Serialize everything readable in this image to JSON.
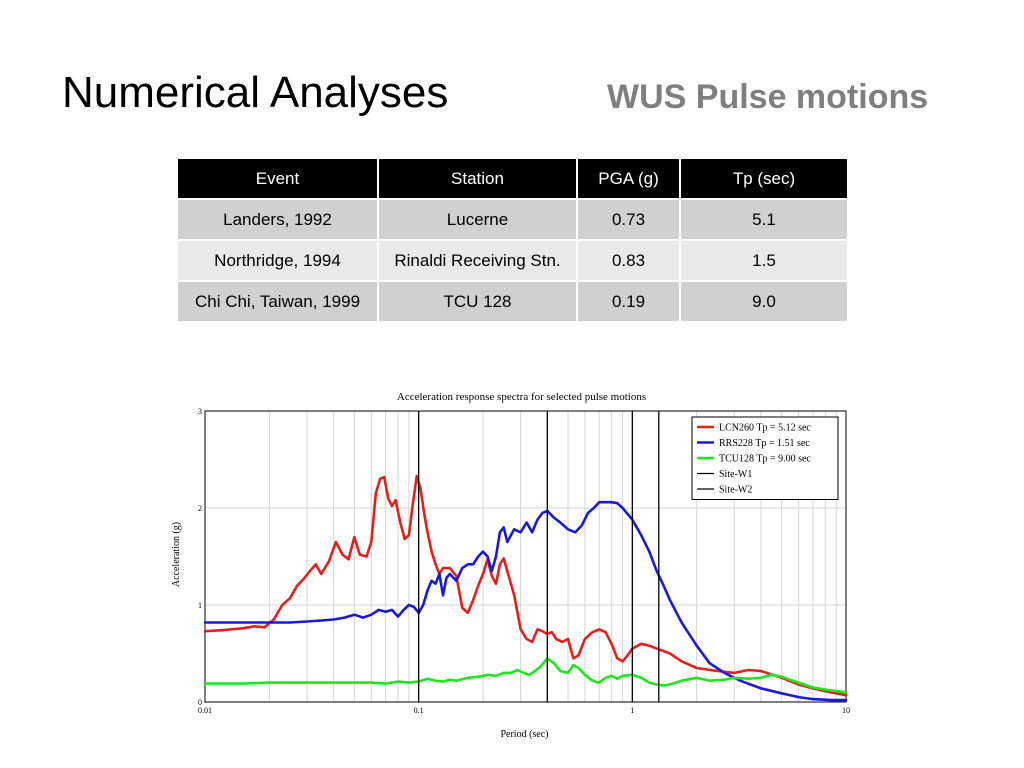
{
  "slide": {
    "title": "Numerical Analyses",
    "subtitle": "WUS Pulse motions"
  },
  "table": {
    "headers": [
      "Event",
      "Station",
      "PGA (g)",
      "Tp (sec)"
    ],
    "rows": [
      [
        "Landers, 1992",
        "Lucerne",
        "0.73",
        "5.1"
      ],
      [
        "Northridge, 1994",
        "Rinaldi Receiving Stn.",
        "0.83",
        "1.5"
      ],
      [
        "Chi Chi, Taiwan, 1999",
        "TCU 128",
        "0.19",
        "9.0"
      ]
    ]
  },
  "chart_data": {
    "type": "line",
    "title": "Acceleration response spectra for selected pulse motions",
    "xlabel": "Period (sec)",
    "ylabel": "Acceleration (g)",
    "xscale": "log",
    "xlim": [
      0.01,
      10
    ],
    "ylim": [
      0,
      3
    ],
    "xticks": [
      "0.01",
      "0.1",
      "1",
      "10"
    ],
    "yticks": [
      "0",
      "1",
      "2",
      "3"
    ],
    "grid": true,
    "legend_position": "top-right",
    "series": [
      {
        "name": "LCN260 Tp = 5.12 sec",
        "color": "#e3201b",
        "points": [
          [
            0.01,
            0.73
          ],
          [
            0.012,
            0.74
          ],
          [
            0.015,
            0.76
          ],
          [
            0.017,
            0.78
          ],
          [
            0.019,
            0.77
          ],
          [
            0.021,
            0.85
          ],
          [
            0.023,
            1.0
          ],
          [
            0.025,
            1.07
          ],
          [
            0.027,
            1.2
          ],
          [
            0.029,
            1.27
          ],
          [
            0.031,
            1.35
          ],
          [
            0.033,
            1.42
          ],
          [
            0.035,
            1.32
          ],
          [
            0.038,
            1.45
          ],
          [
            0.041,
            1.65
          ],
          [
            0.044,
            1.52
          ],
          [
            0.047,
            1.47
          ],
          [
            0.05,
            1.7
          ],
          [
            0.053,
            1.52
          ],
          [
            0.057,
            1.5
          ],
          [
            0.06,
            1.65
          ],
          [
            0.063,
            2.15
          ],
          [
            0.066,
            2.3
          ],
          [
            0.069,
            2.32
          ],
          [
            0.072,
            2.1
          ],
          [
            0.075,
            2.02
          ],
          [
            0.078,
            2.08
          ],
          [
            0.082,
            1.85
          ],
          [
            0.086,
            1.68
          ],
          [
            0.09,
            1.72
          ],
          [
            0.094,
            2.05
          ],
          [
            0.098,
            2.33
          ],
          [
            0.102,
            2.2
          ],
          [
            0.106,
            1.95
          ],
          [
            0.11,
            1.75
          ],
          [
            0.115,
            1.55
          ],
          [
            0.12,
            1.42
          ],
          [
            0.125,
            1.32
          ],
          [
            0.13,
            1.38
          ],
          [
            0.14,
            1.38
          ],
          [
            0.15,
            1.3
          ],
          [
            0.16,
            0.97
          ],
          [
            0.17,
            0.92
          ],
          [
            0.18,
            1.05
          ],
          [
            0.19,
            1.2
          ],
          [
            0.2,
            1.32
          ],
          [
            0.21,
            1.47
          ],
          [
            0.22,
            1.3
          ],
          [
            0.23,
            1.22
          ],
          [
            0.24,
            1.42
          ],
          [
            0.25,
            1.48
          ],
          [
            0.26,
            1.35
          ],
          [
            0.28,
            1.1
          ],
          [
            0.3,
            0.75
          ],
          [
            0.32,
            0.65
          ],
          [
            0.34,
            0.62
          ],
          [
            0.36,
            0.75
          ],
          [
            0.38,
            0.73
          ],
          [
            0.4,
            0.7
          ],
          [
            0.42,
            0.72
          ],
          [
            0.44,
            0.65
          ],
          [
            0.47,
            0.62
          ],
          [
            0.5,
            0.65
          ],
          [
            0.53,
            0.45
          ],
          [
            0.56,
            0.48
          ],
          [
            0.6,
            0.65
          ],
          [
            0.65,
            0.72
          ],
          [
            0.7,
            0.75
          ],
          [
            0.75,
            0.72
          ],
          [
            0.8,
            0.6
          ],
          [
            0.85,
            0.45
          ],
          [
            0.9,
            0.42
          ],
          [
            0.95,
            0.48
          ],
          [
            1.0,
            0.55
          ],
          [
            1.1,
            0.6
          ],
          [
            1.2,
            0.58
          ],
          [
            1.3,
            0.55
          ],
          [
            1.5,
            0.5
          ],
          [
            1.7,
            0.42
          ],
          [
            2.0,
            0.35
          ],
          [
            2.5,
            0.32
          ],
          [
            3.0,
            0.3
          ],
          [
            3.5,
            0.33
          ],
          [
            4.0,
            0.32
          ],
          [
            5.0,
            0.25
          ],
          [
            6.0,
            0.18
          ],
          [
            7.0,
            0.14
          ],
          [
            8.5,
            0.1
          ],
          [
            10,
            0.07
          ]
        ]
      },
      {
        "name": "RRS228 Tp = 1.51 sec",
        "color": "#1a1ad6",
        "points": [
          [
            0.01,
            0.82
          ],
          [
            0.015,
            0.82
          ],
          [
            0.02,
            0.82
          ],
          [
            0.025,
            0.82
          ],
          [
            0.03,
            0.83
          ],
          [
            0.035,
            0.84
          ],
          [
            0.04,
            0.85
          ],
          [
            0.045,
            0.87
          ],
          [
            0.05,
            0.9
          ],
          [
            0.055,
            0.87
          ],
          [
            0.06,
            0.9
          ],
          [
            0.065,
            0.95
          ],
          [
            0.07,
            0.93
          ],
          [
            0.075,
            0.95
          ],
          [
            0.08,
            0.88
          ],
          [
            0.085,
            0.95
          ],
          [
            0.09,
            1.0
          ],
          [
            0.095,
            0.98
          ],
          [
            0.1,
            0.92
          ],
          [
            0.105,
            1.0
          ],
          [
            0.11,
            1.15
          ],
          [
            0.115,
            1.25
          ],
          [
            0.12,
            1.22
          ],
          [
            0.125,
            1.32
          ],
          [
            0.13,
            1.1
          ],
          [
            0.135,
            1.28
          ],
          [
            0.14,
            1.32
          ],
          [
            0.15,
            1.25
          ],
          [
            0.16,
            1.38
          ],
          [
            0.17,
            1.42
          ],
          [
            0.18,
            1.42
          ],
          [
            0.19,
            1.5
          ],
          [
            0.2,
            1.55
          ],
          [
            0.21,
            1.5
          ],
          [
            0.22,
            1.35
          ],
          [
            0.23,
            1.5
          ],
          [
            0.24,
            1.75
          ],
          [
            0.25,
            1.8
          ],
          [
            0.26,
            1.65
          ],
          [
            0.28,
            1.78
          ],
          [
            0.3,
            1.75
          ],
          [
            0.32,
            1.85
          ],
          [
            0.34,
            1.75
          ],
          [
            0.36,
            1.88
          ],
          [
            0.38,
            1.95
          ],
          [
            0.4,
            1.97
          ],
          [
            0.43,
            1.9
          ],
          [
            0.46,
            1.85
          ],
          [
            0.5,
            1.78
          ],
          [
            0.54,
            1.75
          ],
          [
            0.58,
            1.82
          ],
          [
            0.62,
            1.95
          ],
          [
            0.66,
            2.0
          ],
          [
            0.7,
            2.06
          ],
          [
            0.75,
            2.06
          ],
          [
            0.8,
            2.06
          ],
          [
            0.85,
            2.05
          ],
          [
            0.9,
            2.0
          ],
          [
            1.0,
            1.88
          ],
          [
            1.1,
            1.72
          ],
          [
            1.2,
            1.55
          ],
          [
            1.3,
            1.35
          ],
          [
            1.4,
            1.2
          ],
          [
            1.5,
            1.05
          ],
          [
            1.7,
            0.82
          ],
          [
            2.0,
            0.58
          ],
          [
            2.3,
            0.4
          ],
          [
            2.7,
            0.3
          ],
          [
            3.2,
            0.22
          ],
          [
            4.0,
            0.14
          ],
          [
            5.0,
            0.09
          ],
          [
            6.0,
            0.05
          ],
          [
            7.0,
            0.03
          ],
          [
            8.5,
            0.02
          ],
          [
            10,
            0.02
          ]
        ]
      },
      {
        "name": "TCU128 Tp = 9.00 sec",
        "color": "#1ee61e",
        "points": [
          [
            0.01,
            0.19
          ],
          [
            0.015,
            0.19
          ],
          [
            0.02,
            0.2
          ],
          [
            0.03,
            0.2
          ],
          [
            0.04,
            0.2
          ],
          [
            0.05,
            0.2
          ],
          [
            0.06,
            0.2
          ],
          [
            0.07,
            0.19
          ],
          [
            0.08,
            0.21
          ],
          [
            0.09,
            0.2
          ],
          [
            0.1,
            0.21
          ],
          [
            0.11,
            0.24
          ],
          [
            0.12,
            0.22
          ],
          [
            0.13,
            0.21
          ],
          [
            0.14,
            0.23
          ],
          [
            0.15,
            0.22
          ],
          [
            0.17,
            0.25
          ],
          [
            0.19,
            0.26
          ],
          [
            0.21,
            0.28
          ],
          [
            0.23,
            0.27
          ],
          [
            0.25,
            0.3
          ],
          [
            0.27,
            0.3
          ],
          [
            0.29,
            0.33
          ],
          [
            0.31,
            0.3
          ],
          [
            0.33,
            0.28
          ],
          [
            0.35,
            0.32
          ],
          [
            0.37,
            0.36
          ],
          [
            0.4,
            0.45
          ],
          [
            0.43,
            0.4
          ],
          [
            0.46,
            0.32
          ],
          [
            0.5,
            0.3
          ],
          [
            0.53,
            0.38
          ],
          [
            0.56,
            0.35
          ],
          [
            0.6,
            0.28
          ],
          [
            0.65,
            0.22
          ],
          [
            0.7,
            0.2
          ],
          [
            0.75,
            0.25
          ],
          [
            0.8,
            0.27
          ],
          [
            0.85,
            0.24
          ],
          [
            0.9,
            0.27
          ],
          [
            1.0,
            0.28
          ],
          [
            1.1,
            0.25
          ],
          [
            1.2,
            0.2
          ],
          [
            1.3,
            0.18
          ],
          [
            1.4,
            0.17
          ],
          [
            1.5,
            0.18
          ],
          [
            1.7,
            0.22
          ],
          [
            2.0,
            0.25
          ],
          [
            2.3,
            0.22
          ],
          [
            2.7,
            0.23
          ],
          [
            3.0,
            0.25
          ],
          [
            3.5,
            0.24
          ],
          [
            4.0,
            0.25
          ],
          [
            4.5,
            0.28
          ],
          [
            5.0,
            0.26
          ],
          [
            6.0,
            0.2
          ],
          [
            7.0,
            0.15
          ],
          [
            8.5,
            0.12
          ],
          [
            10,
            0.1
          ]
        ]
      },
      {
        "name": "Site-W1",
        "color": "#000000",
        "vlines": [
          0.1,
          0.4
        ]
      },
      {
        "name": "Site-W2",
        "color": "#000000",
        "vlines": [
          1.0,
          1.33
        ]
      }
    ]
  }
}
